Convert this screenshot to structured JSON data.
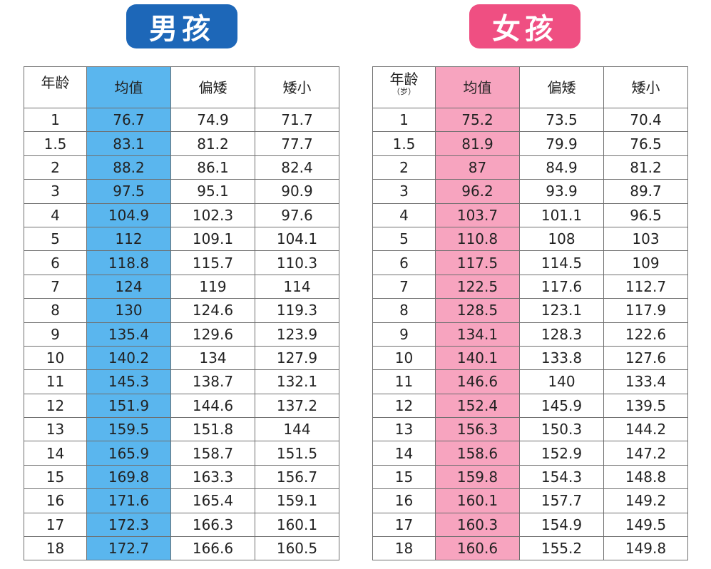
{
  "boys": {
    "title": "男孩",
    "headers": {
      "age": "年龄",
      "avg": "均值",
      "below": "偏矮",
      "short": "矮小"
    },
    "rows": [
      [
        "1",
        "76.7",
        "74.9",
        "71.7"
      ],
      [
        "1.5",
        "83.1",
        "81.2",
        "77.7"
      ],
      [
        "2",
        "88.2",
        "86.1",
        "82.4"
      ],
      [
        "3",
        "97.5",
        "95.1",
        "90.9"
      ],
      [
        "4",
        "104.9",
        "102.3",
        "97.6"
      ],
      [
        "5",
        "112",
        "109.1",
        "104.1"
      ],
      [
        "6",
        "118.8",
        "115.7",
        "110.3"
      ],
      [
        "7",
        "124",
        "119",
        "114"
      ],
      [
        "8",
        "130",
        "124.6",
        "119.3"
      ],
      [
        "9",
        "135.4",
        "129.6",
        "123.9"
      ],
      [
        "10",
        "140.2",
        "134",
        "127.9"
      ],
      [
        "11",
        "145.3",
        "138.7",
        "132.1"
      ],
      [
        "12",
        "151.9",
        "144.6",
        "137.2"
      ],
      [
        "13",
        "159.5",
        "151.8",
        "144"
      ],
      [
        "14",
        "165.9",
        "158.7",
        "151.5"
      ],
      [
        "15",
        "169.8",
        "163.3",
        "156.7"
      ],
      [
        "16",
        "171.6",
        "165.4",
        "159.1"
      ],
      [
        "17",
        "172.3",
        "166.3",
        "160.1"
      ],
      [
        "18",
        "172.7",
        "166.6",
        "160.5"
      ]
    ]
  },
  "girls": {
    "title": "女孩",
    "headers": {
      "age": "年龄",
      "age_unit": "（岁）",
      "avg": "均值",
      "below": "偏矮",
      "short": "矮小"
    },
    "rows": [
      [
        "1",
        "75.2",
        "73.5",
        "70.4"
      ],
      [
        "1.5",
        "81.9",
        "79.9",
        "76.5"
      ],
      [
        "2",
        "87",
        "84.9",
        "81.2"
      ],
      [
        "3",
        "96.2",
        "93.9",
        "89.7"
      ],
      [
        "4",
        "103.7",
        "101.1",
        "96.5"
      ],
      [
        "5",
        "110.8",
        "108",
        "103"
      ],
      [
        "6",
        "117.5",
        "114.5",
        "109"
      ],
      [
        "7",
        "122.5",
        "117.6",
        "112.7"
      ],
      [
        "8",
        "128.5",
        "123.1",
        "117.9"
      ],
      [
        "9",
        "134.1",
        "128.3",
        "122.6"
      ],
      [
        "10",
        "140.1",
        "133.8",
        "127.6"
      ],
      [
        "11",
        "146.6",
        "140",
        "133.4"
      ],
      [
        "12",
        "152.4",
        "145.9",
        "139.5"
      ],
      [
        "13",
        "156.3",
        "150.3",
        "144.2"
      ],
      [
        "14",
        "158.6",
        "152.9",
        "147.2"
      ],
      [
        "15",
        "159.8",
        "154.3",
        "148.8"
      ],
      [
        "16",
        "160.1",
        "157.7",
        "149.2"
      ],
      [
        "17",
        "160.3",
        "154.9",
        "149.5"
      ],
      [
        "18",
        "160.6",
        "155.2",
        "149.8"
      ]
    ]
  },
  "colors": {
    "boys_badge": "#1d67b8",
    "girls_badge": "#ef4f82",
    "boys_highlight": "#5ab6ee",
    "girls_highlight": "#f7a4bf"
  }
}
